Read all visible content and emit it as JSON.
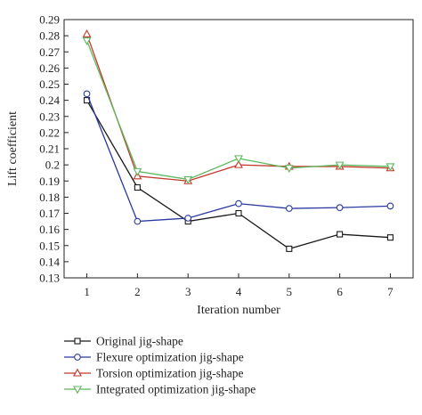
{
  "chart_data": {
    "type": "line",
    "xlabel": "Iteration number",
    "ylabel": "Lift coefficient",
    "x": [
      1,
      2,
      3,
      4,
      5,
      6,
      7
    ],
    "xlim": [
      0.55,
      7.45
    ],
    "ylim": [
      0.13,
      0.29
    ],
    "xticks": [
      "1",
      "2",
      "3",
      "4",
      "5",
      "6",
      "7"
    ],
    "yticks": [
      "0.13",
      "0.14",
      "0.15",
      "0.16",
      "0.17",
      "0.18",
      "0.19",
      "0.2",
      "0.21",
      "0.22",
      "0.23",
      "0.24",
      "0.25",
      "0.26",
      "0.27",
      "0.28",
      "0.29"
    ],
    "grid": false,
    "legend_position": "bottom-center",
    "series": [
      {
        "name": "Original jig-shape",
        "color": "#1a1a1a",
        "marker": "square",
        "values": [
          0.24,
          0.186,
          0.165,
          0.17,
          0.148,
          0.157,
          0.155
        ]
      },
      {
        "name": "Flexure optimization jig-shape",
        "color": "#2a3aa0",
        "marker": "circle",
        "values": [
          0.244,
          0.165,
          0.167,
          0.176,
          0.173,
          0.1735,
          0.1745
        ]
      },
      {
        "name": "Torsion optimization jig-shape",
        "color": "#c0392b",
        "marker": "triangle-up",
        "values": [
          0.281,
          0.193,
          0.19,
          0.2,
          0.199,
          0.199,
          0.198
        ]
      },
      {
        "name": "Integrated optimization jig-shape",
        "color": "#5cb85c",
        "marker": "triangle-down",
        "values": [
          0.277,
          0.196,
          0.191,
          0.204,
          0.198,
          0.2,
          0.199
        ]
      }
    ]
  }
}
